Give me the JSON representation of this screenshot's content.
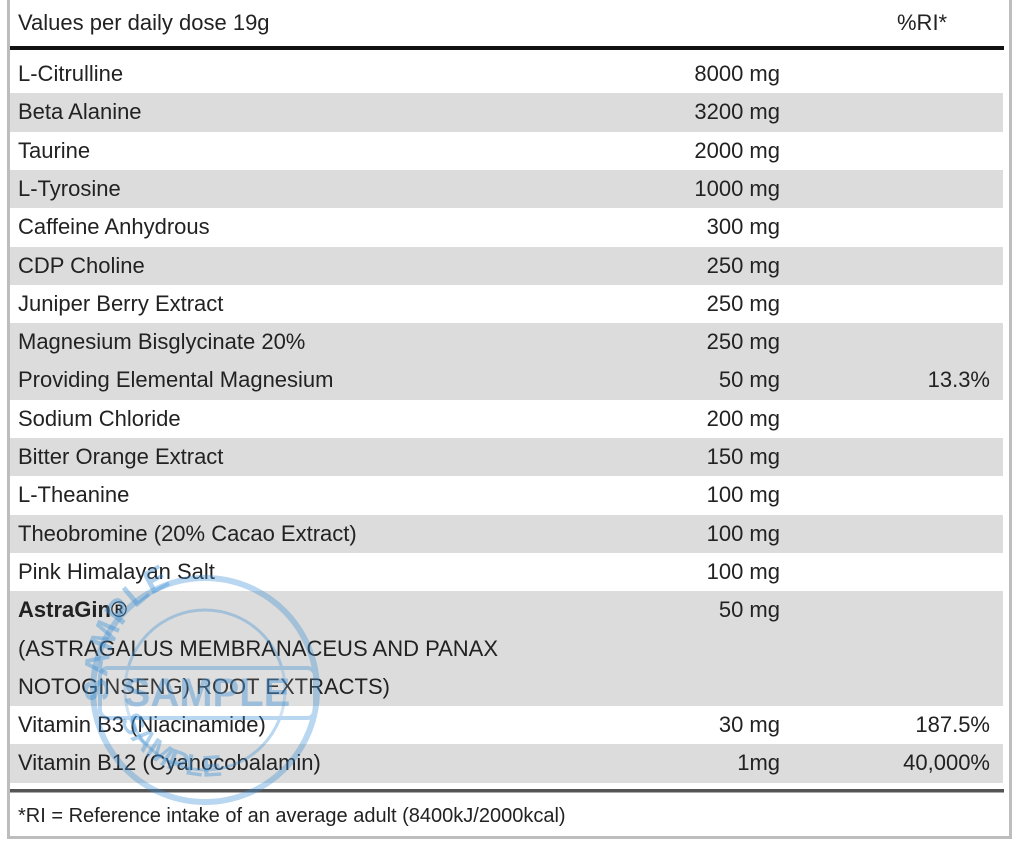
{
  "header": {
    "label": "Values per daily dose 19g",
    "ri": "%RI*"
  },
  "table": {
    "rows": [
      {
        "lines": [
          {
            "name": "L-Citrulline",
            "amount": "8000 mg"
          }
        ]
      },
      {
        "lines": [
          {
            "name": "Beta Alanine",
            "amount": "3200 mg"
          }
        ]
      },
      {
        "lines": [
          {
            "name": "Taurine",
            "amount": "2000 mg"
          }
        ]
      },
      {
        "lines": [
          {
            "name": "L-Tyrosine",
            "amount": "1000 mg"
          }
        ]
      },
      {
        "lines": [
          {
            "name": "Caffeine Anhydrous",
            "amount": "300 mg"
          }
        ]
      },
      {
        "lines": [
          {
            "name": "CDP Choline",
            "amount": "250 mg"
          }
        ]
      },
      {
        "lines": [
          {
            "name": "Juniper Berry Extract",
            "amount": "250 mg"
          }
        ]
      },
      {
        "lines": [
          {
            "name": "Magnesium Bisglycinate 20%",
            "amount": "250 mg"
          },
          {
            "name": "Providing Elemental Magnesium",
            "amount": "50 mg",
            "ri": "13.3%"
          }
        ]
      },
      {
        "lines": [
          {
            "name": "Sodium Chloride",
            "amount": "200 mg"
          }
        ]
      },
      {
        "lines": [
          {
            "name": "Bitter Orange Extract",
            "amount": "150 mg"
          }
        ]
      },
      {
        "lines": [
          {
            "name": "L-Theanine",
            "amount": "100 mg"
          }
        ]
      },
      {
        "lines": [
          {
            "name": "Theobromine (20% Cacao Extract)",
            "amount": "100 mg"
          }
        ]
      },
      {
        "lines": [
          {
            "name": "Pink Himalayan Salt",
            "amount": "100 mg"
          }
        ]
      },
      {
        "lines": [
          {
            "name": "AstraGin®",
            "amount": "50 mg",
            "bold": true
          },
          {
            "name": "(ASTRAGALUS MEMBRANACEUS AND PANAX"
          },
          {
            "name": "NOTOGINSENG) ROOT EXTRACTS)"
          }
        ]
      },
      {
        "lines": [
          {
            "name": "Vitamin B3 (Niacinamide)",
            "amount": "30 mg",
            "ri": "187.5%"
          }
        ]
      },
      {
        "lines": [
          {
            "name": "Vitamin B12 (Cyanocobalamin)",
            "amount": "1mg",
            "ri": "40,000%"
          }
        ]
      }
    ]
  },
  "footer": {
    "note": "*RI = Reference intake of an average adult (8400kJ/2000kcal)"
  },
  "watermark": "SAMPLE"
}
